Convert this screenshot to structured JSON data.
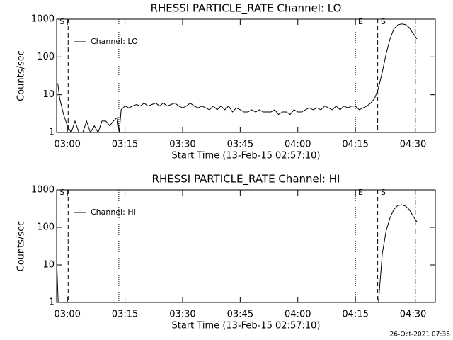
{
  "chart_data": [
    {
      "type": "line",
      "title": "RHESSI PARTICLE_RATE Channel: LO",
      "y_label": "Counts/sec",
      "x_label": "Start Time (13-Feb-15 02:57:10)",
      "log_y": true,
      "ylim": [
        1,
        1000
      ],
      "yticks": [
        1,
        10,
        100,
        1000
      ],
      "xlim": [
        177.2,
        275.8
      ],
      "xticks": [
        {
          "value": 180,
          "label": "03:00"
        },
        {
          "value": 195,
          "label": "03:15"
        },
        {
          "value": 210,
          "label": "03:30"
        },
        {
          "value": 225,
          "label": "03:45"
        },
        {
          "value": 240,
          "label": "04:00"
        },
        {
          "value": 255,
          "label": "04:15"
        },
        {
          "value": 270,
          "label": "04:30"
        }
      ],
      "vlines": [
        {
          "x": 180.2,
          "style": "dashed"
        },
        {
          "x": 193.4,
          "style": "dotted"
        },
        {
          "x": 255,
          "style": "dotted"
        },
        {
          "x": 260.8,
          "style": "dashed"
        },
        {
          "x": 270.6,
          "style": "dashdot"
        }
      ],
      "annotations": [
        {
          "text": "S",
          "x": 178
        },
        {
          "text": "E",
          "x": 255.7
        },
        {
          "text": "S",
          "x": 261.6
        }
      ],
      "series": [
        {
          "name": "Channel: LO",
          "color": "#000000",
          "x": [
            177.5,
            178,
            179,
            180,
            181,
            182,
            183,
            184,
            185,
            186,
            187,
            188,
            189,
            190,
            191,
            192,
            193,
            193.5,
            194,
            195,
            196,
            197,
            198,
            199,
            200,
            201,
            202,
            203,
            204,
            205,
            206,
            207,
            208,
            209,
            210,
            211,
            212,
            213,
            214,
            215,
            216,
            217,
            218,
            219,
            220,
            221,
            222,
            223,
            224,
            225,
            226,
            227,
            228,
            229,
            230,
            231,
            232,
            233,
            234,
            235,
            236,
            237,
            238,
            239,
            240,
            241,
            242,
            243,
            244,
            245,
            246,
            247,
            248,
            249,
            250,
            251,
            252,
            253,
            254,
            255,
            256,
            257,
            258,
            259,
            260,
            261,
            262,
            263,
            264,
            265,
            266,
            267,
            268,
            269,
            270,
            271
          ],
          "values": [
            20,
            8,
            3,
            1.5,
            1,
            2,
            1,
            1,
            2,
            1,
            1.5,
            1,
            2,
            2,
            1.5,
            2,
            2.5,
            1,
            4,
            5,
            4.5,
            5,
            5.5,
            5,
            6,
            5,
            5.5,
            6,
            5,
            6,
            5,
            5.5,
            6,
            5,
            4.5,
            5,
            6,
            5,
            4.5,
            5,
            4.5,
            4,
            5,
            4,
            5,
            4,
            5,
            3.5,
            4.5,
            4,
            3.5,
            3.5,
            4,
            3.5,
            4,
            3.5,
            3.5,
            3.5,
            4,
            3,
            3.5,
            3.5,
            3,
            4,
            3.5,
            3.5,
            4,
            4.5,
            4,
            4.5,
            4,
            5,
            4.5,
            4,
            5,
            4,
            5,
            4.5,
            5,
            5,
            4,
            4.5,
            5,
            6,
            8,
            15,
            40,
            120,
            300,
            550,
            700,
            750,
            720,
            600,
            420,
            300
          ]
        }
      ]
    },
    {
      "type": "line",
      "title": "RHESSI PARTICLE_RATE Channel: HI",
      "y_label": "Counts/sec",
      "x_label": "Start Time (13-Feb-15 02:57:10)",
      "log_y": true,
      "ylim": [
        1,
        1000
      ],
      "yticks": [
        1,
        10,
        100,
        1000
      ],
      "xlim": [
        177.2,
        275.8
      ],
      "xticks": [
        {
          "value": 180,
          "label": "03:00"
        },
        {
          "value": 195,
          "label": "03:15"
        },
        {
          "value": 210,
          "label": "03:30"
        },
        {
          "value": 225,
          "label": "03:45"
        },
        {
          "value": 240,
          "label": "04:00"
        },
        {
          "value": 255,
          "label": "04:15"
        },
        {
          "value": 270,
          "label": "04:30"
        }
      ],
      "vlines": [
        {
          "x": 180.2,
          "style": "dashed"
        },
        {
          "x": 193.4,
          "style": "dotted"
        },
        {
          "x": 255,
          "style": "dotted"
        },
        {
          "x": 260.8,
          "style": "dashed"
        },
        {
          "x": 270.6,
          "style": "dashdot"
        }
      ],
      "annotations": [
        {
          "text": "S",
          "x": 178
        },
        {
          "text": "E",
          "x": 255.7
        },
        {
          "text": "S",
          "x": 261.6
        }
      ],
      "series": [
        {
          "name": "Channel: HI",
          "color": "#000000",
          "x": [
            177.3,
            177.6,
            178,
            261,
            262,
            263,
            264,
            265,
            266,
            267,
            268,
            269,
            270,
            271
          ],
          "values": [
            8,
            1,
            null,
            1,
            20,
            80,
            180,
            300,
            380,
            400,
            370,
            300,
            200,
            140
          ]
        }
      ]
    }
  ],
  "footer": "26-Oct-2021 07:36"
}
